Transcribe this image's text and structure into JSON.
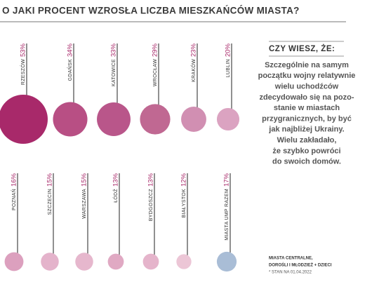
{
  "chart_data": {
    "type": "bubble",
    "title": "O JAKI PROCENT WZROSŁA LICZBA MIESZKAŃCÓW MIASTA?",
    "categories": [
      "RZESZÓW",
      "GDAŃSK",
      "KATOWICE",
      "WROCŁAW",
      "KRAKÓW",
      "LUBLIN",
      "POZNAŃ",
      "SZCZECIN",
      "WARSZAWA",
      "ŁÓDŹ",
      "BYDGOSZCZ",
      "BIAŁYSTOK",
      "MIASTA UMP RAZEM"
    ],
    "values": [
      53,
      34,
      33,
      29,
      23,
      20,
      16,
      15,
      15,
      13,
      13,
      12,
      17
    ],
    "value_labels": [
      "53%",
      "34%",
      "33%",
      "29%",
      "23%",
      "20%",
      "16%",
      "15%",
      "15%",
      "13%",
      "13%",
      "12%",
      "17%"
    ],
    "colors": [
      "#a8296a",
      "#b84f84",
      "#b9568a",
      "#c06892",
      "#d18fb2",
      "#dba3c1",
      "#dca0be",
      "#e4b3cb",
      "#e6b7cd",
      "#e0a9c3",
      "#e5b4cb",
      "#ecc6d6",
      "#a9bdd6"
    ],
    "notes": [
      "MIASTA CENTRALNE,",
      "DOROŚLI I MŁODZIEŻ + DZIECI",
      "* STAN NA 01.04.2022"
    ]
  },
  "sidebar": {
    "heading": "CZY WIESZ, ŻE:",
    "lines": [
      "Szczególnie na samym",
      "początku wojny relatywnie",
      "wielu uchodźców",
      "zdecydowało się na pozo-",
      "stanie w miastach",
      "przygranicznych, by być",
      "jak najbliżej Ukrainy.",
      "Wielu zakładało,",
      "że szybko powróci",
      "do swoich domów."
    ]
  }
}
